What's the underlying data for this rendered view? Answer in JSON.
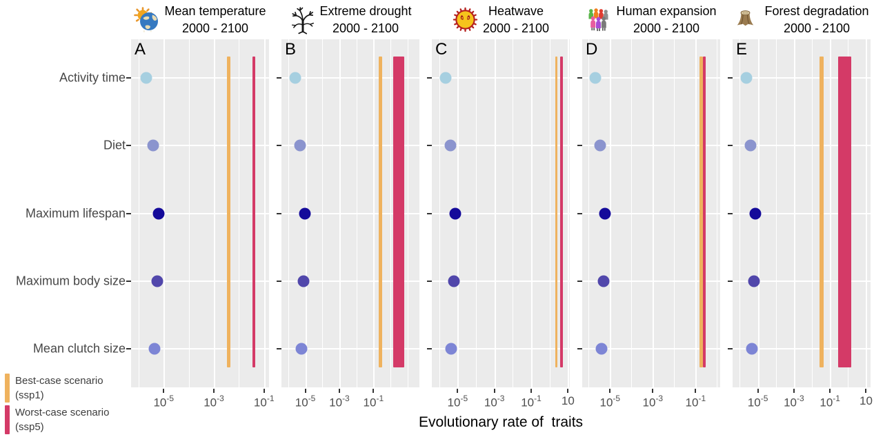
{
  "figure": {
    "xlabel": "Evolutionary rate of  traits",
    "legend": [
      {
        "scenario_key": "ssp1",
        "line1": "Best-case scenario",
        "line2": "(ssp1)",
        "color": "#efb25e"
      },
      {
        "scenario_key": "ssp5",
        "line1": "Worst-case scenario",
        "line2": "(ssp5)",
        "color": "#d43a67"
      }
    ]
  },
  "colors": {
    "panel_bg": "#ebebeb",
    "grid": "#ffffff",
    "axis_tick_text": "#4d4d4d",
    "y_label_text": "#474747",
    "best_case": "#efb25e",
    "worst_case": "#d43a67",
    "dot_colors": [
      "#a6cfe0",
      "#8b94ce",
      "#140a9a",
      "#5147ab",
      "#7d85d5"
    ]
  },
  "chart_data": {
    "type": "faceted log-scale dot plot with vertical scenario interval bars",
    "x_axis_label": "Evolutionary rate of  traits",
    "x_scale": "log10",
    "grid": "white on gray panel, gridline every decade",
    "legend_position": "bottom-left",
    "traits": [
      "Activity time",
      "Diet",
      "Maximum lifespan",
      "Maximum body size",
      "Mean clutch size"
    ],
    "row_positions_pct": [
      11.1,
      30.5,
      50.1,
      69.5,
      88.9
    ],
    "panels": [
      {
        "label": "A",
        "icon": "sun-earth-icon",
        "title": "Mean temperature",
        "subtitle": "2000 - 2100",
        "axis": {
          "min_log10": -6.3,
          "max_log10": -0.8,
          "ticks": [
            {
              "log10": -5,
              "base": "10",
              "exp": "-5"
            },
            {
              "log10": -3,
              "base": "10",
              "exp": "-3"
            },
            {
              "log10": -1,
              "base": "10",
              "exp": "-1"
            }
          ]
        },
        "trait_rates_log10": [
          -5.69,
          -5.42,
          -5.19,
          -5.25,
          -5.36
        ],
        "scenario_bars": [
          {
            "scenario_key": "ssp1",
            "scenario": "Best-case (ssp1)",
            "log10_center": -2.4,
            "width_decades": 0.14,
            "color": "#efb25e"
          },
          {
            "scenario_key": "ssp5",
            "scenario": "Worst-case (ssp5)",
            "log10_center": -1.4,
            "width_decades": 0.11,
            "color": "#d43a67"
          }
        ]
      },
      {
        "label": "B",
        "icon": "dead-tree-icon",
        "title": "Extreme drought",
        "subtitle": "2000 - 2100",
        "axis": {
          "min_log10": -6.4,
          "max_log10": 1.7,
          "ticks": [
            {
              "log10": -5,
              "base": "10",
              "exp": "-5"
            },
            {
              "log10": -3,
              "base": "10",
              "exp": "-3"
            },
            {
              "log10": -1,
              "base": "10",
              "exp": "-1"
            }
          ]
        },
        "trait_rates_log10": [
          -5.6,
          -5.32,
          -5.04,
          -5.12,
          -5.24
        ],
        "scenario_bars": [
          {
            "scenario_key": "ssp1",
            "scenario": "Best-case (ssp1)",
            "log10_center": -0.6,
            "width_decades": 0.2,
            "color": "#efb25e"
          },
          {
            "scenario_key": "ssp5",
            "scenario": "Worst-case (ssp5)",
            "log10_center": 0.48,
            "width_decades": 0.64,
            "color": "#d43a67"
          }
        ]
      },
      {
        "label": "C",
        "icon": "heatwave-sun-icon",
        "title": "Heatwave",
        "subtitle": "2000 - 2100",
        "axis": {
          "min_log10": -6.4,
          "max_log10": 1.1,
          "ticks": [
            {
              "log10": -5,
              "base": "10",
              "exp": "-5"
            },
            {
              "log10": -3,
              "base": "10",
              "exp": "-3"
            },
            {
              "log10": -1,
              "base": "10",
              "exp": "-1"
            },
            {
              "log10": 1,
              "base": "10",
              "exp": ""
            }
          ]
        },
        "trait_rates_log10": [
          -5.65,
          -5.38,
          -5.12,
          -5.19,
          -5.35
        ],
        "scenario_bars": [
          {
            "scenario_key": "ssp1",
            "scenario": "Best-case (ssp1)",
            "log10_center": 0.38,
            "width_decades": 0.12,
            "color": "#efb25e"
          },
          {
            "scenario_key": "ssp5",
            "scenario": "Worst-case (ssp5)",
            "log10_center": 0.65,
            "width_decades": 0.12,
            "color": "#d43a67"
          }
        ]
      },
      {
        "label": "D",
        "icon": "human-crowd-icon",
        "title": "Human expansion",
        "subtitle": "2000 - 2100",
        "axis": {
          "min_log10": -6.3,
          "max_log10": 0.15,
          "ticks": [
            {
              "log10": -5,
              "base": "10",
              "exp": "-5"
            },
            {
              "log10": -3,
              "base": "10",
              "exp": "-3"
            },
            {
              "log10": -1,
              "base": "10",
              "exp": "-1"
            }
          ]
        },
        "trait_rates_log10": [
          -5.68,
          -5.45,
          -5.23,
          -5.29,
          -5.39
        ],
        "scenario_bars": [
          {
            "scenario_key": "ssp1",
            "scenario": "Best-case (ssp1)",
            "log10_center": -0.74,
            "width_decades": 0.16,
            "color": "#efb25e"
          },
          {
            "scenario_key": "ssp5",
            "scenario": "Worst-case (ssp5)",
            "log10_center": -0.58,
            "width_decades": 0.13,
            "color": "#d43a67"
          }
        ]
      },
      {
        "label": "E",
        "icon": "tree-stump-icon",
        "title": "Forest degradation",
        "subtitle": "2000 - 2100",
        "axis": {
          "min_log10": -6.4,
          "max_log10": 1.25,
          "ticks": [
            {
              "log10": -5,
              "base": "10",
              "exp": "-5"
            },
            {
              "log10": -3,
              "base": "10",
              "exp": "-3"
            },
            {
              "log10": -1,
              "base": "10",
              "exp": "-1"
            },
            {
              "log10": 1,
              "base": "10",
              "exp": ""
            }
          ]
        },
        "trait_rates_log10": [
          -5.65,
          -5.4,
          -5.15,
          -5.22,
          -5.33
        ],
        "scenario_bars": [
          {
            "scenario_key": "ssp1",
            "scenario": "Best-case (ssp1)",
            "log10_center": -1.47,
            "width_decades": 0.22,
            "color": "#efb25e"
          },
          {
            "scenario_key": "ssp5",
            "scenario": "Worst-case (ssp5)",
            "log10_center": -0.2,
            "width_decades": 0.73,
            "color": "#d43a67"
          }
        ]
      }
    ]
  }
}
